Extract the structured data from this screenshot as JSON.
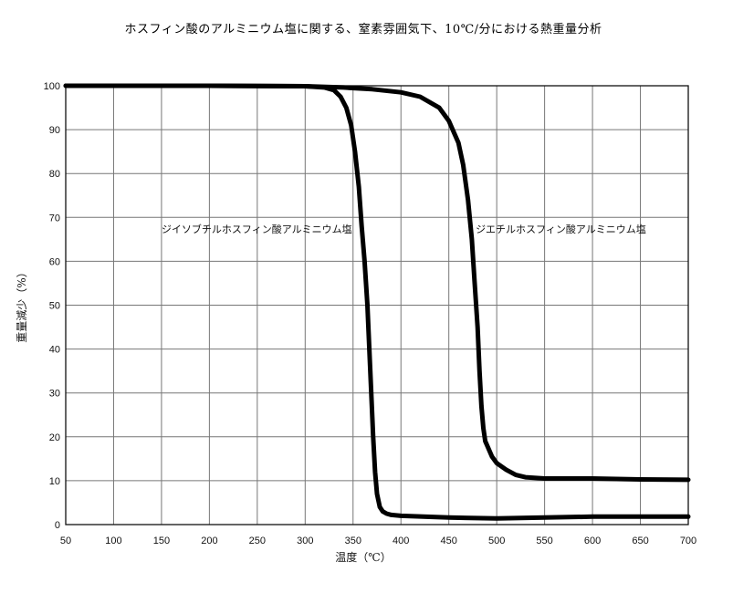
{
  "chart_data": {
    "type": "line",
    "title": "ホスフィン酸のアルミニウム塩に関する、窒素雰囲気下、10℃/分における熱重量分析",
    "xlabel": "温度（℃）",
    "ylabel": "重量減少（%）",
    "xlim": [
      50,
      700
    ],
    "ylim": [
      0,
      100
    ],
    "x_ticks": [
      "50",
      "100",
      "150",
      "200",
      "250",
      "300",
      "350",
      "400",
      "450",
      "500",
      "550",
      "600",
      "650",
      "700"
    ],
    "y_ticks": [
      "0",
      "10",
      "20",
      "30",
      "40",
      "50",
      "60",
      "70",
      "80",
      "90",
      "100"
    ],
    "grid": true,
    "series": [
      {
        "name": "ジイソブチルホスフィン酸アルミニウム塩",
        "x": [
          50,
          200,
          300,
          320,
          330,
          337,
          343,
          348,
          352,
          356,
          359,
          362,
          365,
          367,
          369,
          371,
          373,
          375,
          378,
          381,
          385,
          390,
          400,
          450,
          500,
          550,
          600,
          650,
          700
        ],
        "y": [
          100,
          100,
          99.9,
          99.6,
          99.0,
          97.5,
          95,
          91,
          85,
          77,
          68,
          60,
          50,
          40,
          30,
          20,
          12,
          7,
          4,
          3,
          2.5,
          2.2,
          2.0,
          1.6,
          1.4,
          1.6,
          1.8,
          1.8,
          1.8
        ]
      },
      {
        "name": "ジエチルホスフィン酸アルミニウム塩",
        "x": [
          50,
          200,
          300,
          340,
          370,
          400,
          420,
          440,
          450,
          460,
          465,
          470,
          474,
          477,
          480,
          482,
          484,
          486,
          488,
          490,
          495,
          500,
          510,
          520,
          530,
          550,
          600,
          650,
          700
        ],
        "y": [
          100,
          100,
          99.9,
          99.6,
          99.2,
          98.5,
          97.5,
          95,
          92,
          87,
          82,
          74,
          65,
          55,
          45,
          35,
          27,
          22,
          19,
          18,
          15.5,
          14,
          12.5,
          11.3,
          10.8,
          10.5,
          10.5,
          10.3,
          10.2
        ]
      }
    ],
    "annotations": [
      {
        "text": "ジイソブチルホスフィン酸アルミニウム塩",
        "x": 150,
        "y": 66.5
      },
      {
        "text": "ジエチルホスフィン酸アルミニウム塩",
        "x": 478,
        "y": 66.5
      }
    ]
  }
}
